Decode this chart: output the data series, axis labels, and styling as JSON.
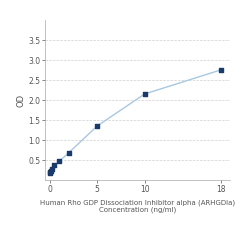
{
  "x_data": [
    0,
    0.0625,
    0.125,
    0.25,
    0.5,
    1.0,
    2.0,
    5.0,
    10.0,
    18.0
  ],
  "y_data": [
    0.175,
    0.195,
    0.22,
    0.28,
    0.37,
    0.47,
    0.68,
    1.35,
    2.15,
    2.75
  ],
  "line_color": "#a8c8e0",
  "marker_color": "#1a3a6b",
  "xlabel_line1": "Human Rho GDP Dissociation Inhibitor alpha (ARHGDIa)",
  "xlabel_line2": "Concentration (ng/ml)",
  "ylabel": "OD",
  "xlim": [
    -0.5,
    19
  ],
  "ylim": [
    0,
    4.0
  ],
  "yticks": [
    0.5,
    1.0,
    1.5,
    2.0,
    2.5,
    3.0,
    3.5
  ],
  "xticks": [
    0,
    5,
    10,
    18
  ],
  "bg_color": "#ffffff",
  "grid_color": "#d0d0d0",
  "xlabel_fontsize": 5.0,
  "ylabel_fontsize": 6.0,
  "tick_fontsize": 5.5,
  "marker_size": 10,
  "linewidth": 1.0
}
